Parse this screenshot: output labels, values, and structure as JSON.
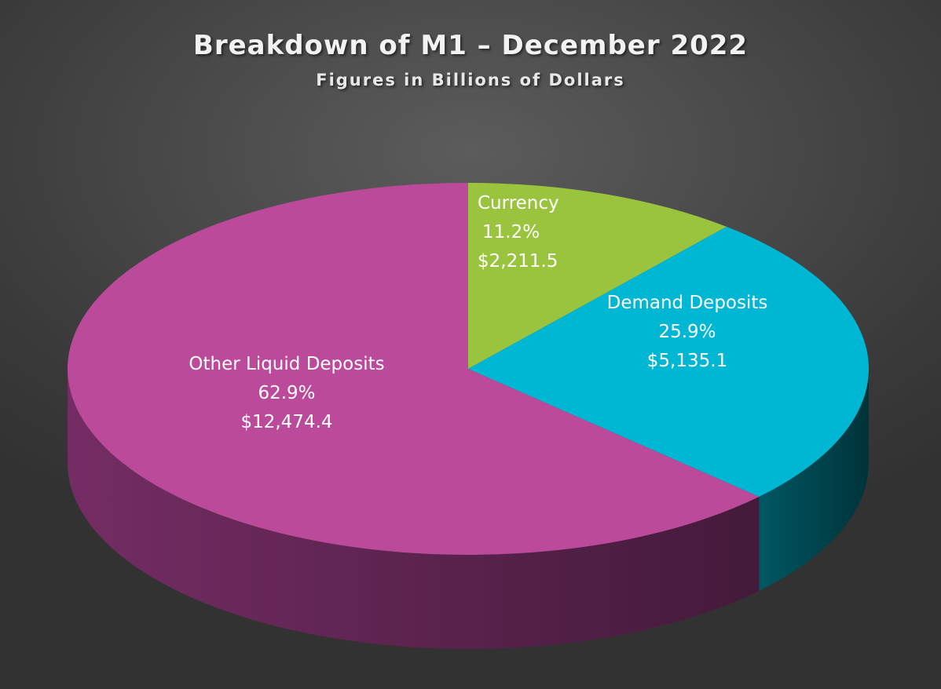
{
  "chart_data": {
    "type": "pie",
    "title": "Breakdown of M1 – December 2022",
    "subtitle": "Figures in Billions of Dollars",
    "categories": [
      "Currency",
      "Demand Deposits",
      "Other Liquid Deposits"
    ],
    "values": [
      2211.5,
      5135.1,
      12474.4
    ],
    "percent_labels": [
      "11.2%",
      "25.9%",
      "62.9%"
    ],
    "value_labels": [
      "$2,211.5",
      "$5,135.1",
      "$12,474.4"
    ],
    "colors": [
      "#9bc43e",
      "#00b7d3",
      "#bb4a9b"
    ],
    "side_colors": [
      "#6e8c2a",
      "#005c68",
      "#7a2f69"
    ],
    "style": "3d-pie",
    "legend": "none"
  }
}
